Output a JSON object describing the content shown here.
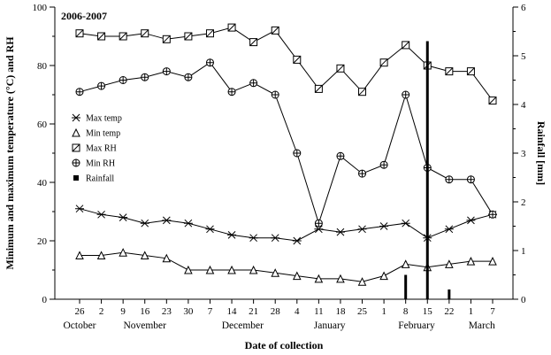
{
  "colors": {
    "foreground": "#000000",
    "background": "#ffffff"
  },
  "chart_data": {
    "type": "line",
    "title_annotation": "2006-2007",
    "xlabel": "Date of collection",
    "ylabel_left": "Minimum and maximum temperature (°C) and RH",
    "ylabel_right": "Rainfall [mm]",
    "ylim_left": [
      0,
      100
    ],
    "yticks_left": [
      0,
      20,
      40,
      60,
      80,
      100
    ],
    "ylim_right": [
      0,
      6
    ],
    "yticks_right": [
      0,
      1,
      2,
      3,
      4,
      5,
      6
    ],
    "x_tick_labels": [
      "26",
      "2",
      "9",
      "16",
      "23",
      "30",
      "7",
      "14",
      "21",
      "28",
      "4",
      "11",
      "18",
      "25",
      "1",
      "8",
      "15",
      "22",
      "1",
      "7"
    ],
    "months": [
      {
        "label": "October",
        "from": 0,
        "to": 0
      },
      {
        "label": "November",
        "from": 1,
        "to": 5
      },
      {
        "label": "December",
        "from": 6,
        "to": 9
      },
      {
        "label": "January",
        "from": 10,
        "to": 13
      },
      {
        "label": "February",
        "from": 14,
        "to": 17
      },
      {
        "label": "March",
        "from": 18,
        "to": 19
      }
    ],
    "series": [
      {
        "name": "Max temp",
        "marker": "x-cross",
        "axis": "left",
        "values": [
          31,
          29,
          28,
          26,
          27,
          26,
          24,
          22,
          21,
          21,
          20,
          24,
          23,
          24,
          25,
          26,
          21,
          24,
          27,
          29
        ]
      },
      {
        "name": "Min temp",
        "marker": "triangle",
        "axis": "left",
        "values": [
          15,
          15,
          16,
          15,
          14,
          10,
          10,
          10,
          10,
          9,
          8,
          7,
          7,
          6,
          8,
          12,
          11,
          12,
          13,
          13
        ]
      },
      {
        "name": "Max RH",
        "marker": "square-slash",
        "axis": "left",
        "values": [
          91,
          90,
          90,
          91,
          89,
          90,
          91,
          93,
          88,
          92,
          82,
          72,
          79,
          71,
          81,
          87,
          80,
          78,
          78,
          68
        ]
      },
      {
        "name": "Min RH",
        "marker": "circle-cross",
        "axis": "left",
        "values": [
          71,
          73,
          75,
          76,
          78,
          76,
          81,
          71,
          74,
          70,
          50,
          26,
          49,
          43,
          46,
          70,
          45,
          41,
          41,
          29
        ]
      }
    ],
    "rainfall": {
      "name": "Rainfall",
      "marker": "filled-square",
      "axis": "right",
      "bars": [
        {
          "index": 15,
          "value": 0.5
        },
        {
          "index": 16,
          "value": 5.3
        },
        {
          "index": 17,
          "value": 0.2
        }
      ]
    }
  }
}
